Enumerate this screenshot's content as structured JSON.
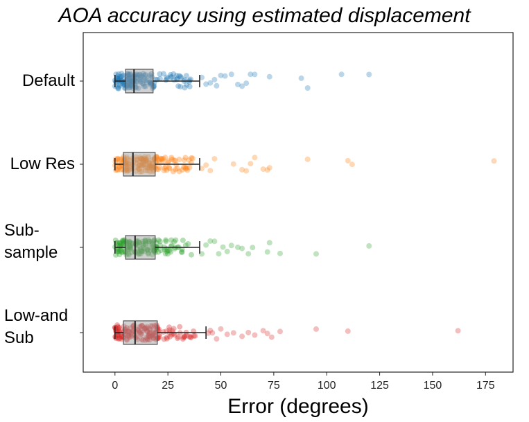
{
  "chart_data": {
    "type": "strip_box",
    "title": "AOA accuracy using estimated displacement",
    "xlabel": "Error (degrees)",
    "ylabel": "",
    "xlim": [
      -15,
      188
    ],
    "xticks": [
      0,
      25,
      50,
      75,
      100,
      125,
      150,
      175
    ],
    "orientation": "horizontal",
    "grid": false,
    "legend": "none",
    "series": [
      {
        "label_lines": [
          "Default"
        ],
        "color": "#1f77b4",
        "box": {
          "q1": 5,
          "median": 9,
          "q3": 18,
          "whisker_low": 0,
          "whisker_high": 40
        },
        "outliers": [
          41,
          43,
          45,
          47,
          48,
          50,
          52,
          55,
          58,
          60,
          62,
          64,
          66,
          73,
          88,
          91,
          107,
          120
        ]
      },
      {
        "label_lines": [
          "Low Res"
        ],
        "color": "#ff7f0e",
        "box": {
          "q1": 4,
          "median": 8.5,
          "q3": 19,
          "whisker_low": 0,
          "whisker_high": 40
        },
        "outliers": [
          41,
          43,
          45,
          47,
          56,
          60,
          62,
          64,
          66,
          70,
          72,
          73,
          91,
          110,
          112,
          179
        ]
      },
      {
        "label_lines": [
          "Sub-",
          "sample"
        ],
        "color": "#2ca02c",
        "box": {
          "q1": 5,
          "median": 9.5,
          "q3": 19,
          "whisker_low": 0,
          "whisker_high": 40
        },
        "outliers": [
          41,
          43,
          45,
          47,
          49,
          51,
          53,
          55,
          58,
          60,
          63,
          65,
          72,
          73,
          78,
          95,
          120
        ]
      },
      {
        "label_lines": [
          "Low-and",
          "Sub"
        ],
        "color": "#d62728",
        "box": {
          "q1": 4,
          "median": 9.5,
          "q3": 20,
          "whisker_low": 0,
          "whisker_high": 43
        },
        "outliers": [
          44,
          45,
          46,
          48,
          50,
          53,
          56,
          60,
          63,
          66,
          70,
          72,
          74,
          78,
          95,
          110,
          162
        ]
      }
    ]
  }
}
